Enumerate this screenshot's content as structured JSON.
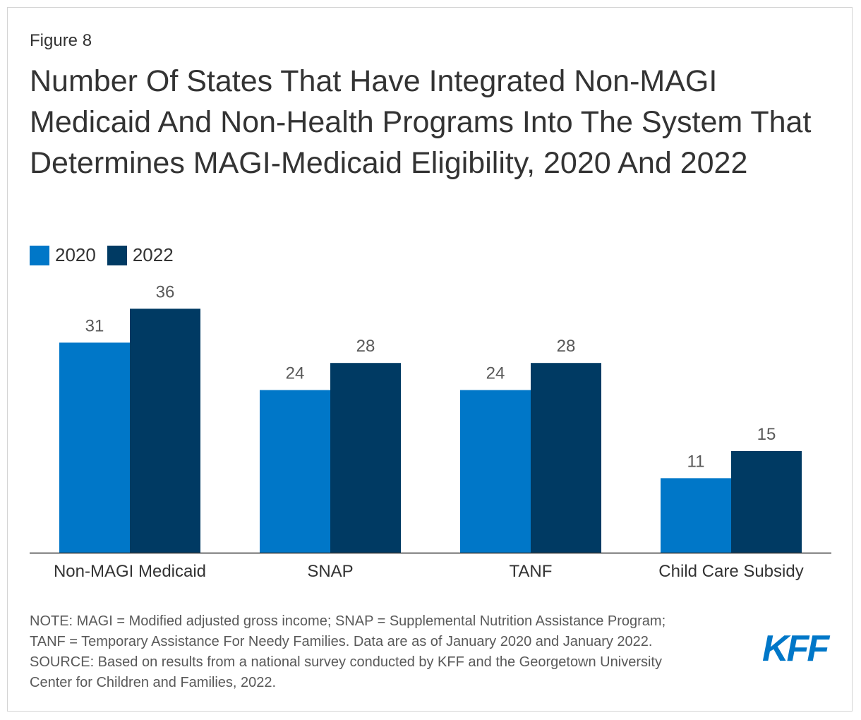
{
  "figure_label": "Figure 8",
  "title": "Number Of States That Have Integrated Non-MAGI Medicaid And Non-Health Programs Into The System That Determines MAGI-Medicaid Eligibility, 2020 And 2022",
  "colors": {
    "series_2020": "#0077c8",
    "series_2022": "#003a63",
    "text": "#333333",
    "axis": "#333333"
  },
  "chart_data": {
    "type": "bar",
    "title": "Number Of States That Have Integrated Non-MAGI Medicaid And Non-Health Programs Into The System That Determines MAGI-Medicaid Eligibility, 2020 And 2022",
    "categories": [
      "Non-MAGI Medicaid",
      "SNAP",
      "TANF",
      "Child Care Subsidy"
    ],
    "series": [
      {
        "name": "2020",
        "values": [
          31,
          24,
          24,
          11
        ],
        "color": "#0077c8"
      },
      {
        "name": "2022",
        "values": [
          36,
          28,
          28,
          15
        ],
        "color": "#003a63"
      }
    ],
    "xlabel": "",
    "ylabel": "",
    "ylim": [
      0,
      36
    ],
    "grid": false,
    "legend": "top-left"
  },
  "notes": {
    "line1": "NOTE: MAGI = Modified adjusted gross income; SNAP = Supplemental Nutrition Assistance Program;",
    "line2": "TANF = Temporary Assistance For Needy Families. Data are as of January 2020 and January 2022.",
    "line3": "SOURCE: Based on results from a national survey conducted by KFF and the Georgetown University",
    "line4": "Center for Children and Families, 2022."
  },
  "logo": "KFF"
}
